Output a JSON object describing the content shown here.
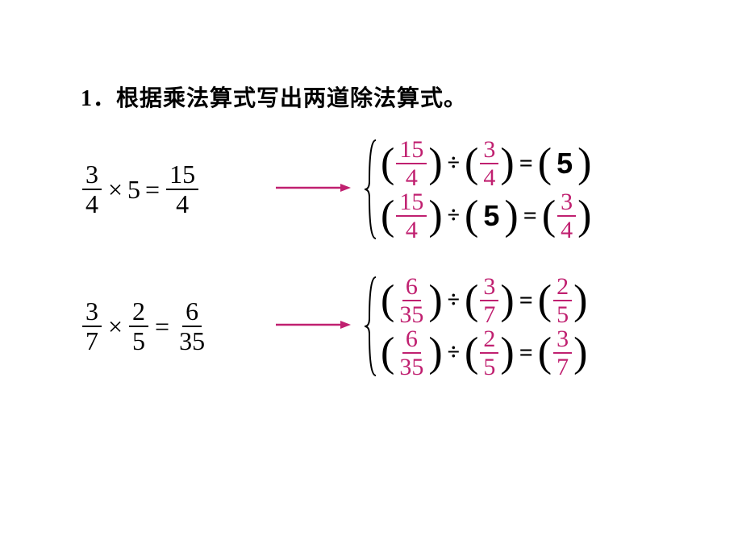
{
  "prompt": "1．根据乘法算式写出两道除法算式。",
  "colors": {
    "answer_pink": "#c02070",
    "arrow_stroke": "#c02070",
    "text": "#000000"
  },
  "problems": [
    {
      "lhs": {
        "a": {
          "num": "3",
          "den": "4"
        },
        "op": "×",
        "b": {
          "type": "int",
          "val": "5"
        },
        "eq": "=",
        "res": {
          "num": "15",
          "den": "4"
        }
      },
      "divisions": [
        {
          "left": {
            "type": "frac",
            "num": "15",
            "den": "4"
          },
          "right": {
            "type": "frac",
            "num": "3",
            "den": "4"
          },
          "result": {
            "type": "int",
            "val": "5"
          }
        },
        {
          "left": {
            "type": "frac",
            "num": "15",
            "den": "4"
          },
          "right": {
            "type": "int",
            "val": "5"
          },
          "result": {
            "type": "frac",
            "num": "3",
            "den": "4"
          }
        }
      ]
    },
    {
      "lhs": {
        "a": {
          "num": "3",
          "den": "7"
        },
        "op": "×",
        "b": {
          "type": "frac",
          "num": "2",
          "den": "5"
        },
        "eq": "=",
        "res": {
          "num": "6",
          "den": "35"
        }
      },
      "divisions": [
        {
          "left": {
            "type": "frac",
            "num": "6",
            "den": "35"
          },
          "right": {
            "type": "frac",
            "num": "3",
            "den": "7"
          },
          "result": {
            "type": "frac",
            "num": "2",
            "den": "5"
          }
        },
        {
          "left": {
            "type": "frac",
            "num": "6",
            "den": "35"
          },
          "right": {
            "type": "frac",
            "num": "2",
            "den": "5"
          },
          "result": {
            "type": "frac",
            "num": "3",
            "den": "7"
          }
        }
      ]
    }
  ],
  "symbols": {
    "div": "÷",
    "eq": "="
  }
}
